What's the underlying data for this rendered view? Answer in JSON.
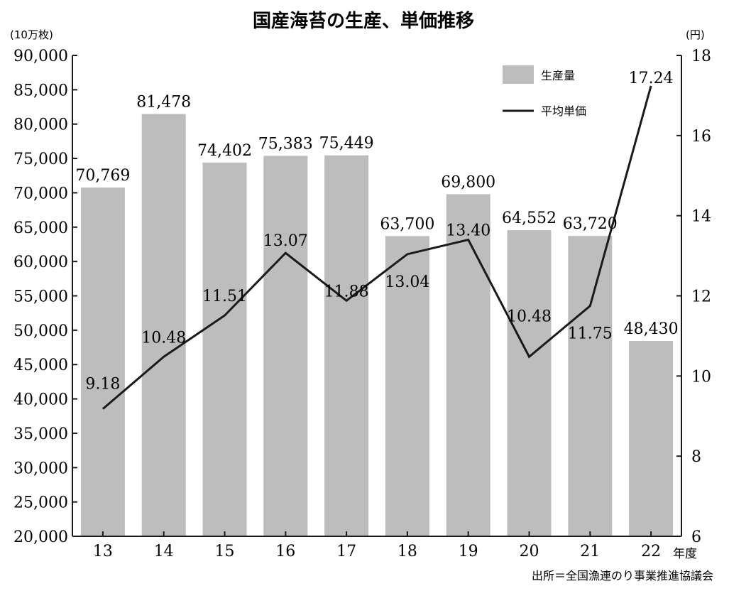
{
  "chart_data": {
    "type": "bar+line",
    "title": "国産海苔の生産、単価推移",
    "y_left_unit": "(10万枚)",
    "y_right_unit": "(円)",
    "x_unit": "年度",
    "source": "出所＝全国漁連のり事業推進協議会",
    "categories": [
      "13",
      "14",
      "15",
      "16",
      "17",
      "18",
      "19",
      "20",
      "21",
      "22"
    ],
    "series": [
      {
        "name": "生産量",
        "type": "bar",
        "axis": "left",
        "values": [
          70769,
          81478,
          74402,
          75383,
          75449,
          63700,
          69800,
          64552,
          63720,
          48430
        ],
        "labels": [
          "70,769",
          "81,478",
          "74,402",
          "75,383",
          "75,449",
          "63,700",
          "69,800",
          "64,552",
          "63,720",
          "48,430"
        ]
      },
      {
        "name": "平均単価",
        "type": "line",
        "axis": "right",
        "values": [
          9.18,
          10.48,
          11.51,
          13.07,
          11.88,
          13.04,
          13.4,
          10.48,
          11.75,
          17.24
        ],
        "labels": [
          "9.18",
          "10.48",
          "11.51",
          "13.07",
          "11.88",
          "13.04",
          "13.40",
          "10.48",
          "11.75",
          "17.24"
        ]
      }
    ],
    "y_left": {
      "min": 20000,
      "max": 90000,
      "step": 5000,
      "tick_labels": [
        "20,000",
        "25,000",
        "30,000",
        "35,000",
        "40,000",
        "45,000",
        "50,000",
        "55,000",
        "60,000",
        "65,000",
        "70,000",
        "75,000",
        "80,000",
        "85,000",
        "90,000"
      ]
    },
    "y_right": {
      "min": 6,
      "max": 18,
      "step": 2,
      "tick_labels": [
        "6",
        "8",
        "10",
        "12",
        "14",
        "16",
        "18"
      ]
    },
    "legend_position": "top-right",
    "grid": false,
    "colors": {
      "bar": "#bdbdbd",
      "line": "#1a1a1a",
      "axis": "#1a1a1a"
    }
  }
}
